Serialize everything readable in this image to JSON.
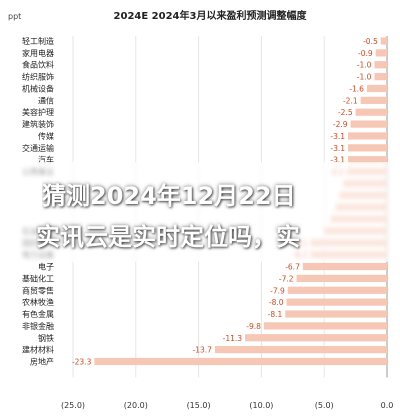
{
  "banner": {
    "line1": "猜测2024年12月22日",
    "line2": "实讯云是实时定位吗，实"
  },
  "chart_data": {
    "type": "bar",
    "orientation": "horizontal",
    "title": "2024E 2024年3月以来盈利预测调整幅度",
    "ylabel": "ppt",
    "xlim": [
      -25,
      0
    ],
    "xticks": [
      -25,
      -20,
      -15,
      -10,
      -5,
      0
    ],
    "xtick_labels": [
      "(25.0)",
      "(20.0)",
      "(15.0)",
      "(10.0)",
      "(5.0)",
      "0.0"
    ],
    "bar_color": "#f6c7b4",
    "label_color": "#d9471f",
    "categories": [
      "轻工制造",
      "家用电器",
      "食品饮料",
      "纺织服饰",
      "机械设备",
      "通信",
      "美容护理",
      "建筑装饰",
      "传媒",
      "交通运输",
      "汽车",
      "公用事业",
      "",
      "",
      "",
      "",
      "石油石化",
      "国防军工",
      "电力设备",
      "电子",
      "基础化工",
      "商贸零售",
      "农林牧渔",
      "有色金属",
      "非银金融",
      "钢铁",
      "建材材料",
      "房地产"
    ],
    "values": [
      -0.5,
      -0.9,
      -1.0,
      -1.0,
      -1.6,
      -2.1,
      -2.5,
      -2.9,
      -3.1,
      -3.1,
      -3.1,
      -3.2,
      -3.5,
      -3.8,
      -4.1,
      -4.5,
      -5.0,
      -6.1,
      -6.1,
      -6.7,
      -7.2,
      -7.9,
      -8.0,
      -8.1,
      -9.8,
      -11.3,
      -13.7,
      -23.3
    ],
    "value_labels": [
      "-0.5",
      "-0.9",
      "-1.0",
      "-1.0",
      "-1.6",
      "-2.1",
      "-2.5",
      "-2.9",
      "-3.1",
      "-3.1",
      "-3.1",
      "-3.2",
      "",
      "",
      "",
      "",
      "",
      "-6.1",
      "-6.1",
      "-6.7",
      "-7.2",
      "-7.9",
      "-8.0",
      "-8.1",
      "-9.8",
      "-11.3",
      "-13.7",
      "-23.3"
    ]
  }
}
